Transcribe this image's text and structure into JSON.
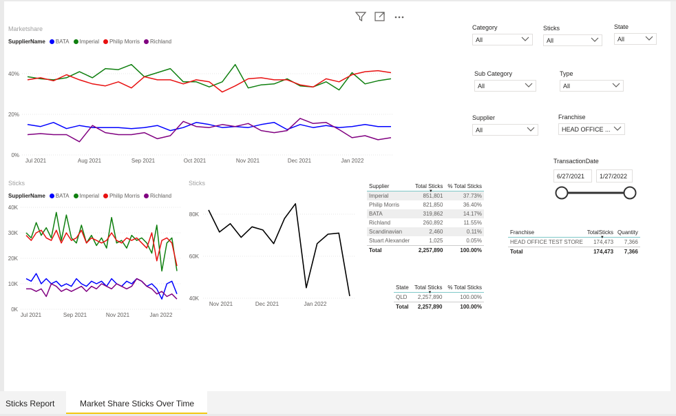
{
  "colors": {
    "BATA": "#0000ff",
    "Imperial": "#0f7f0f",
    "Philip Morris": "#e81010",
    "Richland": "#800080",
    "Stuart": "#000000"
  },
  "header_icons": [
    "filter-icon",
    "focus-mode-icon",
    "more-options-icon"
  ],
  "chart1": {
    "title": "Marketshare",
    "legend_title": "SupplierName",
    "legend": [
      "BATA",
      "Imperial",
      "Philip Morris",
      "Richland"
    ],
    "yticks": [
      "40%",
      "20%",
      "0%"
    ],
    "xticks": [
      "Jul 2021",
      "Aug 2021",
      "Sep 2021",
      "Oct 2021",
      "Nov 2021",
      "Dec 2021",
      "Jan 2022"
    ]
  },
  "chart2": {
    "title": "Sticks",
    "legend_title": "SupplierName",
    "legend": [
      "BATA",
      "Imperial",
      "Philip Morris",
      "Richland"
    ],
    "yticks": [
      "40K",
      "30K",
      "20K",
      "10K",
      "0K"
    ],
    "xticks": [
      "Jul 2021",
      "Sep 2021",
      "Nov 2021",
      "Jan 2022"
    ]
  },
  "chart3": {
    "title": "Sticks",
    "yticks": [
      "80K",
      "60K",
      "40K"
    ],
    "xticks": [
      "Nov 2021",
      "Dec 2021",
      "Jan 2022"
    ]
  },
  "chart_data": [
    {
      "type": "line",
      "title": "Marketshare",
      "legend_title": "SupplierName",
      "ylim": [
        0,
        0.5
      ],
      "x_ticks": [
        "Jul 2021",
        "Aug 2021",
        "Sep 2021",
        "Oct 2021",
        "Nov 2021",
        "Dec 2021",
        "Jan 2022"
      ],
      "series": [
        {
          "name": "Imperial",
          "values": [
            0.385,
            0.375,
            0.37,
            0.38,
            0.41,
            0.38,
            0.425,
            0.42,
            0.445,
            0.385,
            0.405,
            0.425,
            0.36,
            0.36,
            0.335,
            0.36,
            0.445,
            0.33,
            0.345,
            0.35,
            0.375,
            0.34,
            0.335,
            0.36,
            0.32,
            0.405,
            0.35,
            0.365,
            0.375
          ]
        },
        {
          "name": "Philip Morris",
          "values": [
            0.37,
            0.38,
            0.365,
            0.395,
            0.37,
            0.35,
            0.34,
            0.36,
            0.33,
            0.385,
            0.37,
            0.37,
            0.35,
            0.37,
            0.36,
            0.31,
            0.34,
            0.375,
            0.38,
            0.37,
            0.37,
            0.345,
            0.335,
            0.375,
            0.36,
            0.395,
            0.41,
            0.415,
            0.405
          ]
        },
        {
          "name": "BATA",
          "values": [
            0.15,
            0.14,
            0.16,
            0.13,
            0.145,
            0.135,
            0.135,
            0.135,
            0.13,
            0.135,
            0.145,
            0.12,
            0.135,
            0.16,
            0.15,
            0.135,
            0.14,
            0.135,
            0.15,
            0.16,
            0.125,
            0.15,
            0.135,
            0.145,
            0.135,
            0.14,
            0.15,
            0.14,
            0.14
          ]
        },
        {
          "name": "Richland",
          "values": [
            0.1,
            0.105,
            0.1,
            0.1,
            0.065,
            0.145,
            0.11,
            0.1,
            0.1,
            0.11,
            0.08,
            0.095,
            0.165,
            0.14,
            0.135,
            0.15,
            0.14,
            0.155,
            0.12,
            0.11,
            0.12,
            0.18,
            0.155,
            0.16,
            0.125,
            0.085,
            0.095,
            0.075,
            0.085
          ]
        }
      ]
    },
    {
      "type": "line",
      "title": "Sticks",
      "legend_title": "SupplierName",
      "ylim": [
        0,
        40000
      ],
      "x_ticks": [
        "Jul 2021",
        "Sep 2021",
        "Nov 2021",
        "Jan 2022"
      ],
      "series": [
        {
          "name": "Imperial",
          "values": [
            30000,
            28000,
            34000,
            29000,
            32000,
            28000,
            38000,
            27000,
            37000,
            28000,
            26000,
            33000,
            26000,
            29000,
            25000,
            28000,
            24000,
            36000,
            26000,
            27000,
            24000,
            29000,
            27000,
            28000,
            26000,
            22000,
            33000,
            15000,
            26000,
            28000,
            15000
          ]
        },
        {
          "name": "Philip Morris",
          "values": [
            29000,
            27000,
            30000,
            31000,
            28000,
            27000,
            31000,
            26000,
            30000,
            27000,
            28000,
            31000,
            26000,
            28000,
            27000,
            26000,
            27000,
            30000,
            27000,
            26000,
            28000,
            27000,
            28000,
            26000,
            24000,
            30000,
            19000,
            27000,
            28000,
            26000,
            17000
          ]
        },
        {
          "name": "BATA",
          "values": [
            12000,
            11000,
            14000,
            10000,
            12000,
            10000,
            11000,
            9000,
            10000,
            9000,
            12000,
            10000,
            9000,
            11000,
            10000,
            11000,
            9000,
            12000,
            10000,
            9000,
            11000,
            10000,
            12000,
            11000,
            9000,
            10000,
            8000,
            4000,
            10000,
            11000,
            6000
          ]
        },
        {
          "name": "Richland",
          "values": [
            8000,
            8000,
            7000,
            8000,
            5000,
            10000,
            9000,
            7000,
            8000,
            7000,
            8000,
            9000,
            7000,
            9000,
            8000,
            10000,
            9000,
            8000,
            10000,
            9000,
            8000,
            9000,
            12000,
            11000,
            9000,
            8000,
            6000,
            7000,
            5000,
            6000,
            4000
          ]
        }
      ]
    },
    {
      "type": "line",
      "title": "Sticks",
      "ylim": [
        40000,
        85000
      ],
      "x_ticks": [
        "Nov 2021",
        "Dec 2021",
        "Jan 2022"
      ],
      "series": [
        {
          "values": [
            82000,
            71500,
            75500,
            69000,
            74000,
            72500,
            66000,
            78000,
            85000,
            45000,
            66000,
            70500,
            71000,
            41000
          ]
        }
      ]
    }
  ],
  "slicers": {
    "category": {
      "title": "Category",
      "value": "All"
    },
    "sticks": {
      "title": "Sticks",
      "value": "All"
    },
    "state": {
      "title": "State",
      "value": "All"
    },
    "subcategory": {
      "title": "Sub Category",
      "value": "All"
    },
    "type": {
      "title": "Type",
      "value": "All"
    },
    "supplier": {
      "title": "Supplier",
      "value": "All"
    },
    "franchise": {
      "title": "Franchise",
      "value": "HEAD OFFICE ..."
    },
    "transaction": {
      "title": "TransactionDate",
      "start": "6/27/2021",
      "end": "1/27/2022",
      "range_fraction": [
        0,
        1
      ]
    }
  },
  "table_supplier": {
    "headers": [
      "Supplier",
      "Total Sticks",
      "% Total Sticks"
    ],
    "rows": [
      [
        "Imperial",
        "851,801",
        "37.73%"
      ],
      [
        "Philip Morris",
        "821,850",
        "36.40%"
      ],
      [
        "BATA",
        "319,862",
        "14.17%"
      ],
      [
        "Richland",
        "260,892",
        "11.55%"
      ],
      [
        "Scandinavian",
        "2,460",
        "0.11%"
      ],
      [
        "Stuart Alexander",
        "1,025",
        "0.05%"
      ]
    ],
    "total": [
      "Total",
      "2,257,890",
      "100.00%"
    ]
  },
  "table_state": {
    "headers": [
      "State",
      "Total Sticks",
      "% Total Sticks"
    ],
    "rows": [
      [
        "QLD",
        "2,257,890",
        "100.00%"
      ]
    ],
    "total": [
      "Total",
      "2,257,890",
      "100.00%"
    ]
  },
  "table_franchise": {
    "headers": [
      "Franchise",
      "TotalSticks",
      "Quantity"
    ],
    "rows": [
      [
        "HEAD OFFICE TEST STORE",
        "174,473",
        "7,366"
      ]
    ],
    "total": [
      "Total",
      "174,473",
      "7,366"
    ]
  },
  "tabs": [
    "Sticks Report",
    "Market Share Sticks Over Time"
  ]
}
